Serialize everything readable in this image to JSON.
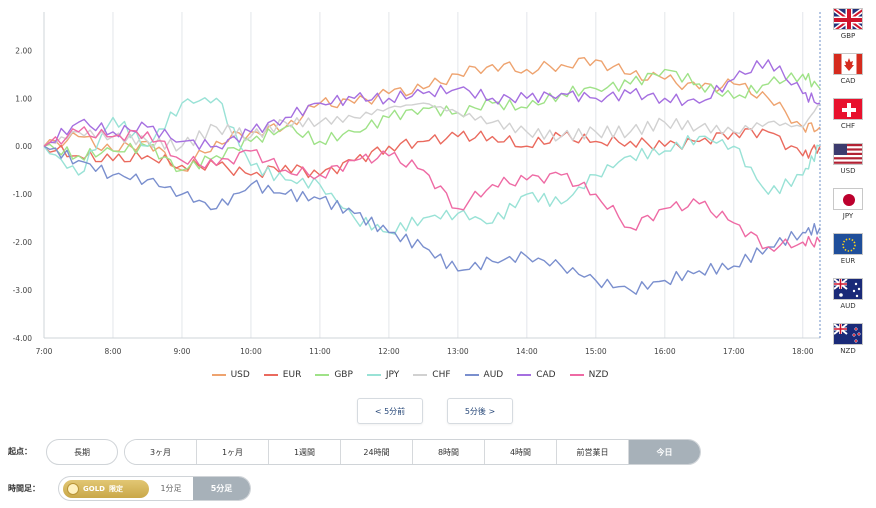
{
  "chart_data": {
    "type": "line",
    "title": "",
    "xlabel": "",
    "ylabel": "",
    "ylim": [
      -4.0,
      2.8
    ],
    "y_ticks": [
      "2.00",
      "1.00",
      "0.00",
      "-1.00",
      "-2.00",
      "-3.00",
      "-4.00"
    ],
    "x_range": [
      "7:00",
      "18:15"
    ],
    "x_ticks": [
      "7:00",
      "8:00",
      "9:00",
      "10:00",
      "11:00",
      "12:00",
      "13:00",
      "14:00",
      "15:00",
      "16:00",
      "17:00",
      "18:00"
    ],
    "grid": "vertical",
    "legend_position": "bottom",
    "series": [
      {
        "name": "USD",
        "color": "#eea36f",
        "x": [
          "7:00",
          "7:30",
          "8:00",
          "8:30",
          "9:00",
          "9:30",
          "10:00",
          "10:30",
          "11:00",
          "11:30",
          "12:00",
          "12:30",
          "13:00",
          "13:30",
          "14:00",
          "14:30",
          "15:00",
          "15:30",
          "16:00",
          "16:30",
          "17:00",
          "17:30",
          "18:00",
          "18:15"
        ],
        "values": [
          0.0,
          0.2,
          -0.1,
          0.1,
          -0.5,
          0.1,
          0.3,
          0.4,
          0.9,
          0.9,
          1.1,
          1.2,
          1.5,
          1.7,
          1.6,
          1.7,
          1.8,
          1.5,
          1.4,
          1.2,
          1.3,
          1.0,
          0.4,
          0.4
        ]
      },
      {
        "name": "EUR",
        "color": "#ea6a5e",
        "x": [
          "7:00",
          "7:30",
          "8:00",
          "8:30",
          "9:00",
          "9:30",
          "10:00",
          "10:30",
          "11:00",
          "11:30",
          "12:00",
          "12:30",
          "13:00",
          "13:30",
          "14:00",
          "14:30",
          "15:00",
          "15:30",
          "16:00",
          "16:30",
          "17:00",
          "17:30",
          "18:00",
          "18:15"
        ],
        "values": [
          0.0,
          -0.2,
          -0.3,
          -0.2,
          -0.4,
          -0.4,
          -0.6,
          -0.4,
          -0.6,
          -0.3,
          0.0,
          0.1,
          0.2,
          0.2,
          0.0,
          0.2,
          0.1,
          0.1,
          0.0,
          0.1,
          0.3,
          0.3,
          -0.2,
          0.0
        ]
      },
      {
        "name": "GBP",
        "color": "#9fe288",
        "x": [
          "7:00",
          "7:30",
          "8:00",
          "8:30",
          "9:00",
          "9:30",
          "10:00",
          "10:30",
          "11:00",
          "11:30",
          "12:00",
          "12:30",
          "13:00",
          "13:30",
          "14:00",
          "14:30",
          "15:00",
          "15:30",
          "16:00",
          "16:30",
          "17:00",
          "17:30",
          "18:00",
          "18:15"
        ],
        "values": [
          0.0,
          -0.2,
          -0.1,
          0.0,
          -0.5,
          -0.2,
          0.1,
          0.4,
          0.1,
          0.3,
          0.6,
          0.8,
          0.7,
          0.9,
          0.8,
          1.1,
          1.2,
          1.3,
          1.6,
          1.3,
          1.0,
          1.3,
          1.5,
          1.2
        ]
      },
      {
        "name": "JPY",
        "color": "#99e2d6",
        "x": [
          "7:00",
          "7:30",
          "8:00",
          "8:30",
          "9:00",
          "9:30",
          "10:00",
          "10:30",
          "11:00",
          "11:30",
          "12:00",
          "12:30",
          "13:00",
          "13:30",
          "14:00",
          "14:30",
          "15:00",
          "15:30",
          "16:00",
          "16:30",
          "17:00",
          "17:30",
          "18:00",
          "18:15"
        ],
        "values": [
          0.0,
          -0.6,
          0.6,
          0.0,
          0.9,
          1.0,
          -0.4,
          -0.7,
          -0.8,
          -1.5,
          -1.8,
          -1.5,
          -1.4,
          -1.6,
          -1.0,
          -1.2,
          -0.6,
          -0.2,
          -0.1,
          0.2,
          0.0,
          -1.0,
          -0.6,
          0.0
        ]
      },
      {
        "name": "CHF",
        "color": "#d1d1d1",
        "x": [
          "7:00",
          "7:30",
          "8:00",
          "8:30",
          "9:00",
          "9:30",
          "10:00",
          "10:30",
          "11:00",
          "11:30",
          "12:00",
          "12:30",
          "13:00",
          "13:30",
          "14:00",
          "14:30",
          "15:00",
          "15:30",
          "16:00",
          "16:30",
          "17:00",
          "17:30",
          "18:00",
          "18:15"
        ],
        "values": [
          0.0,
          0.3,
          0.2,
          0.1,
          0.0,
          0.4,
          0.2,
          0.5,
          0.5,
          0.6,
          0.8,
          0.9,
          0.7,
          0.5,
          0.3,
          0.2,
          0.3,
          0.3,
          0.5,
          0.4,
          0.3,
          0.5,
          0.4,
          0.9
        ]
      },
      {
        "name": "AUD",
        "color": "#7a8fce",
        "x": [
          "7:00",
          "7:30",
          "8:00",
          "8:30",
          "9:00",
          "9:30",
          "10:00",
          "10:30",
          "11:00",
          "11:30",
          "12:00",
          "12:30",
          "13:00",
          "13:30",
          "14:00",
          "14:30",
          "15:00",
          "15:30",
          "16:00",
          "16:30",
          "17:00",
          "17:30",
          "18:00",
          "18:15"
        ],
        "values": [
          0.0,
          -0.3,
          -0.6,
          -0.7,
          -1.0,
          -1.3,
          -0.8,
          -1.0,
          -1.1,
          -1.4,
          -1.8,
          -2.1,
          -2.6,
          -2.4,
          -2.3,
          -2.5,
          -2.8,
          -3.0,
          -2.8,
          -2.6,
          -2.5,
          -2.1,
          -1.8,
          -1.7
        ]
      },
      {
        "name": "CAD",
        "color": "#a56fe0",
        "x": [
          "7:00",
          "7:30",
          "8:00",
          "8:30",
          "9:00",
          "9:30",
          "10:00",
          "10:30",
          "11:00",
          "11:30",
          "12:00",
          "12:30",
          "13:00",
          "13:30",
          "14:00",
          "14:30",
          "15:00",
          "15:30",
          "16:00",
          "16:30",
          "17:00",
          "17:30",
          "18:00",
          "18:15"
        ],
        "values": [
          0.0,
          0.5,
          0.3,
          0.4,
          0.1,
          0.0,
          0.3,
          0.6,
          0.9,
          1.0,
          1.0,
          1.1,
          1.2,
          1.0,
          1.0,
          1.1,
          1.0,
          1.1,
          1.0,
          0.9,
          1.4,
          1.8,
          1.1,
          0.9
        ]
      },
      {
        "name": "NZD",
        "color": "#ee6aa4",
        "x": [
          "7:00",
          "7:30",
          "8:00",
          "8:30",
          "9:00",
          "9:30",
          "10:00",
          "10:30",
          "11:00",
          "11:30",
          "12:00",
          "12:30",
          "13:00",
          "13:30",
          "14:00",
          "14:30",
          "15:00",
          "15:30",
          "16:00",
          "16:30",
          "17:00",
          "17:30",
          "18:00",
          "18:15"
        ],
        "values": [
          0.0,
          0.3,
          0.2,
          0.3,
          -0.3,
          -0.4,
          -0.1,
          -0.5,
          -0.6,
          -0.3,
          -0.2,
          -0.5,
          -1.3,
          -0.8,
          -0.7,
          -0.6,
          -1.0,
          -1.7,
          -1.3,
          -1.2,
          -1.6,
          -2.1,
          -2.0,
          -2.0
        ]
      }
    ]
  },
  "flags": [
    {
      "code": "GBP",
      "icon": "uk-flag-icon"
    },
    {
      "code": "CAD",
      "icon": "canada-flag-icon"
    },
    {
      "code": "CHF",
      "icon": "switzerland-flag-icon"
    },
    {
      "code": "USD",
      "icon": "usa-flag-icon"
    },
    {
      "code": "JPY",
      "icon": "japan-flag-icon"
    },
    {
      "code": "EUR",
      "icon": "eu-flag-icon"
    },
    {
      "code": "AUD",
      "icon": "australia-flag-icon"
    },
    {
      "code": "NZD",
      "icon": "newzealand-flag-icon"
    }
  ],
  "nav": {
    "prev": "< 5分前",
    "next": "5分後 >"
  },
  "period": {
    "label": "起点：",
    "long": "長期",
    "options": [
      "3ヶ月",
      "1ヶ月",
      "1週間",
      "24時間",
      "8時間",
      "4時間",
      "前営業日",
      "今日"
    ],
    "selected": "今日"
  },
  "timeframe": {
    "label": "時間足：",
    "gold_label": "GOLD",
    "gold_tag": "限定",
    "one_min": "1分足",
    "five_min": "5分足",
    "selected": "5分足"
  }
}
